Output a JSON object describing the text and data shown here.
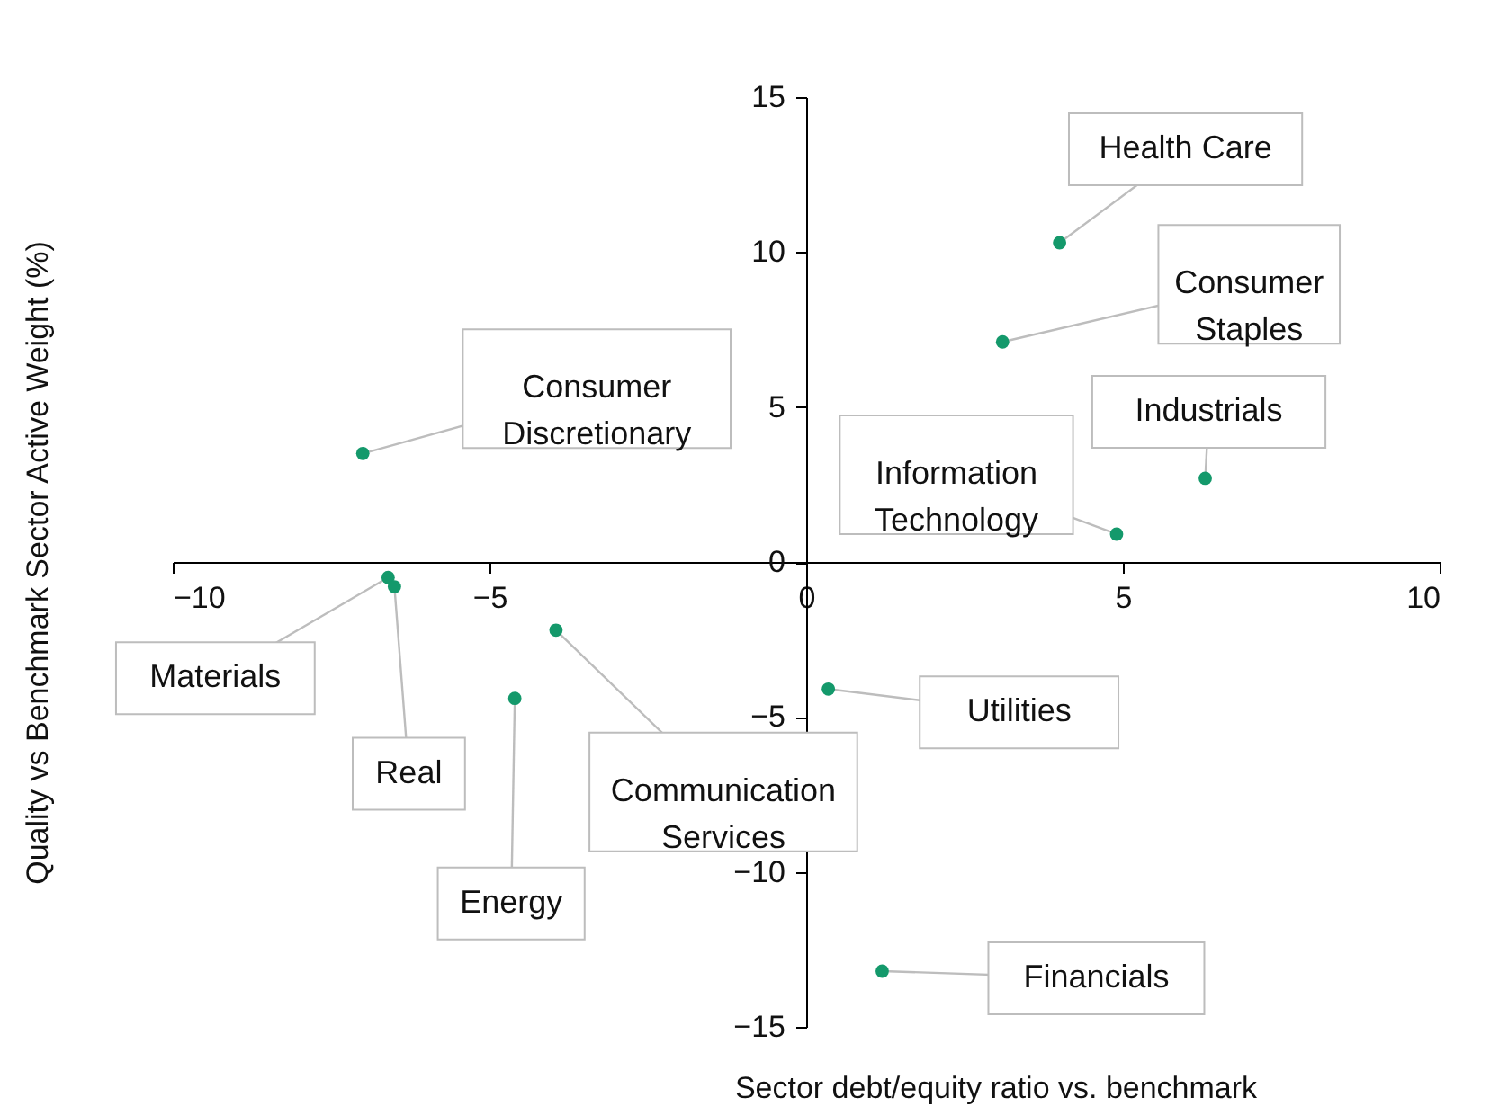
{
  "chart_data": {
    "type": "scatter",
    "xlabel": "Sector debt/equity ratio vs. benchmark",
    "ylabel": "Quality vs Benchmark Sector Active Weight (%)",
    "xlim": [
      -10,
      10
    ],
    "ylim": [
      -15,
      15
    ],
    "xticks": [
      -10,
      -5,
      0,
      5,
      10
    ],
    "yticks": [
      -15,
      -10,
      -5,
      0,
      5,
      10,
      15
    ],
    "grid": false,
    "legend": false,
    "marker": "circle",
    "series": [
      {
        "color": "#14996b",
        "x": [
          4.0,
          3.1,
          6.3,
          4.9,
          -7.0,
          -6.6,
          -6.5,
          -3.95,
          -4.6,
          0.35,
          1.2
        ],
        "values": [
          10.3,
          7.1,
          2.7,
          0.9,
          3.5,
          -0.5,
          -0.8,
          -2.2,
          -4.4,
          -4.1,
          -13.2
        ]
      }
    ],
    "annotations": [
      {
        "text": "Health Care",
        "x": 4.0,
        "y": 10.3
      },
      {
        "text": "Consumer Staples",
        "x": 3.1,
        "y": 7.1
      },
      {
        "text": "Industrials",
        "x": 6.3,
        "y": 2.7
      },
      {
        "text": "Information Technology",
        "x": 4.9,
        "y": 0.9
      },
      {
        "text": "Consumer Discretionary",
        "x": -7.0,
        "y": 3.5
      },
      {
        "text": "Materials",
        "x": -6.6,
        "y": -0.5
      },
      {
        "text": "Real",
        "x": -6.5,
        "y": -0.8
      },
      {
        "text": "Communication Services",
        "x": -3.95,
        "y": -2.2
      },
      {
        "text": "Energy",
        "x": -4.6,
        "y": -4.4
      },
      {
        "text": "Utilities",
        "x": 0.35,
        "y": -4.1
      },
      {
        "text": "Financials",
        "x": 1.2,
        "y": -13.2
      }
    ]
  }
}
